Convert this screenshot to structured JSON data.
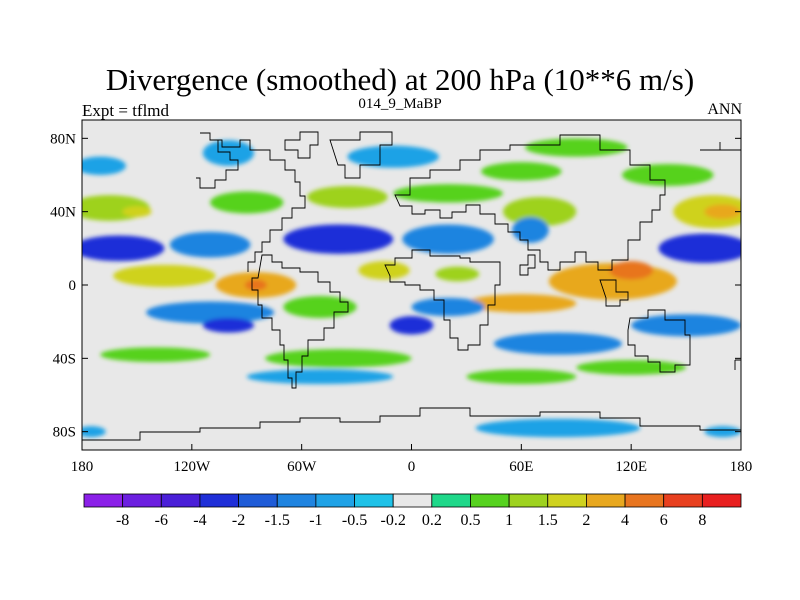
{
  "chart_data": {
    "type": "heatmap",
    "title": "Divergence (smoothed) at 200 hPa (10**6 m/s)",
    "left_label": "Expt = tflmd",
    "center_label": "014_9_MaBP",
    "right_label": "ANN",
    "xlim": [
      -180,
      180
    ],
    "ylim": [
      -90,
      90
    ],
    "x_ticks": [
      {
        "value": -180,
        "label": "180"
      },
      {
        "value": -120,
        "label": "120W"
      },
      {
        "value": -60,
        "label": "60W"
      },
      {
        "value": 0,
        "label": "0"
      },
      {
        "value": 60,
        "label": "60E"
      },
      {
        "value": 120,
        "label": "120E"
      },
      {
        "value": 180,
        "label": "180"
      }
    ],
    "y_ticks": [
      {
        "value": 80,
        "label": "80N"
      },
      {
        "value": 40,
        "label": "40N"
      },
      {
        "value": 0,
        "label": "0"
      },
      {
        "value": -40,
        "label": "40S"
      },
      {
        "value": -80,
        "label": "80S"
      }
    ],
    "colorbar": {
      "colors": [
        "#8b20e8",
        "#6c1fe0",
        "#4a1fd8",
        "#1f2fd8",
        "#1f5cd8",
        "#1f84e0",
        "#1fa2e6",
        "#1fc2e8",
        "#e8e8e8",
        "#1fd88a",
        "#56d21f",
        "#9ed21f",
        "#cfd21f",
        "#e8a81f",
        "#e8751f",
        "#e8401f",
        "#e81f1f"
      ],
      "labels": [
        "-8",
        "-6",
        "-4",
        "-2",
        "-1.5",
        "-1",
        "-0.5",
        "-0.2",
        "0.2",
        "0.5",
        "1",
        "1.5",
        "2",
        "4",
        "6",
        "8"
      ]
    },
    "fields": [
      {
        "lon": -170,
        "lat": 65,
        "value": -0.8,
        "rx": 14,
        "ry": 5
      },
      {
        "lon": -100,
        "lat": 72,
        "value": -0.8,
        "rx": 14,
        "ry": 7
      },
      {
        "lon": -10,
        "lat": 70,
        "value": -1,
        "rx": 25,
        "ry": 6
      },
      {
        "lon": 90,
        "lat": 75,
        "value": 0.7,
        "rx": 28,
        "ry": 5
      },
      {
        "lon": 60,
        "lat": 62,
        "value": 0.6,
        "rx": 22,
        "ry": 5
      },
      {
        "lon": 140,
        "lat": 60,
        "value": 0.6,
        "rx": 25,
        "ry": 6
      },
      {
        "lon": 20,
        "lat": 50,
        "value": 0.6,
        "rx": 30,
        "ry": 5
      },
      {
        "lon": -165,
        "lat": 42,
        "value": 1.2,
        "rx": 22,
        "ry": 7
      },
      {
        "lon": -150,
        "lat": 40,
        "value": 1.7,
        "rx": 8,
        "ry": 3
      },
      {
        "lon": -90,
        "lat": 45,
        "value": 0.8,
        "rx": 20,
        "ry": 6
      },
      {
        "lon": -35,
        "lat": 48,
        "value": 1.1,
        "rx": 22,
        "ry": 6
      },
      {
        "lon": 70,
        "lat": 40,
        "value": 1.2,
        "rx": 20,
        "ry": 8
      },
      {
        "lon": 165,
        "lat": 40,
        "value": 1.7,
        "rx": 22,
        "ry": 9
      },
      {
        "lon": 170,
        "lat": 40,
        "value": 2.5,
        "rx": 10,
        "ry": 4
      },
      {
        "lon": -160,
        "lat": 20,
        "value": -2.5,
        "rx": 25,
        "ry": 7
      },
      {
        "lon": -110,
        "lat": 22,
        "value": -1.2,
        "rx": 22,
        "ry": 7
      },
      {
        "lon": -40,
        "lat": 25,
        "value": -2.5,
        "rx": 30,
        "ry": 8
      },
      {
        "lon": 20,
        "lat": 25,
        "value": -1.5,
        "rx": 25,
        "ry": 8
      },
      {
        "lon": 65,
        "lat": 30,
        "value": -1.5,
        "rx": 10,
        "ry": 7
      },
      {
        "lon": 160,
        "lat": 20,
        "value": -2.5,
        "rx": 25,
        "ry": 8
      },
      {
        "lon": -135,
        "lat": 5,
        "value": 1.8,
        "rx": 28,
        "ry": 6
      },
      {
        "lon": -85,
        "lat": 0,
        "value": 2.5,
        "rx": 22,
        "ry": 7
      },
      {
        "lon": -85,
        "lat": 0,
        "value": 5,
        "rx": 6,
        "ry": 3
      },
      {
        "lon": -15,
        "lat": 8,
        "value": 1.7,
        "rx": 14,
        "ry": 5
      },
      {
        "lon": 25,
        "lat": 6,
        "value": 1.2,
        "rx": 12,
        "ry": 4
      },
      {
        "lon": 110,
        "lat": 2,
        "value": 2.5,
        "rx": 35,
        "ry": 10
      },
      {
        "lon": 120,
        "lat": 8,
        "value": 4,
        "rx": 12,
        "ry": 5
      },
      {
        "lon": 60,
        "lat": -10,
        "value": 2,
        "rx": 30,
        "ry": 5
      },
      {
        "lon": -50,
        "lat": -12,
        "value": 0.8,
        "rx": 20,
        "ry": 6
      },
      {
        "lon": 20,
        "lat": -12,
        "value": -1.5,
        "rx": 20,
        "ry": 5
      },
      {
        "lon": -110,
        "lat": -15,
        "value": -1.2,
        "rx": 35,
        "ry": 6
      },
      {
        "lon": -100,
        "lat": -22,
        "value": -2.5,
        "rx": 14,
        "ry": 4
      },
      {
        "lon": 0,
        "lat": -22,
        "value": -2.5,
        "rx": 12,
        "ry": 5
      },
      {
        "lon": 150,
        "lat": -22,
        "value": -1.5,
        "rx": 30,
        "ry": 6
      },
      {
        "lon": -140,
        "lat": -38,
        "value": 0.6,
        "rx": 30,
        "ry": 4
      },
      {
        "lon": -40,
        "lat": -40,
        "value": 0.6,
        "rx": 40,
        "ry": 5
      },
      {
        "lon": 80,
        "lat": -32,
        "value": -1.5,
        "rx": 35,
        "ry": 6
      },
      {
        "lon": 120,
        "lat": -45,
        "value": 0.6,
        "rx": 30,
        "ry": 4
      },
      {
        "lon": -50,
        "lat": -50,
        "value": -0.8,
        "rx": 40,
        "ry": 4
      },
      {
        "lon": 60,
        "lat": -50,
        "value": 0.6,
        "rx": 30,
        "ry": 4
      },
      {
        "lon": 80,
        "lat": -78,
        "value": -0.8,
        "rx": 45,
        "ry": 5
      },
      {
        "lon": -175,
        "lat": -80,
        "value": -0.8,
        "rx": 8,
        "ry": 3
      },
      {
        "lon": 170,
        "lat": -80,
        "value": -0.8,
        "rx": 10,
        "ry": 3
      }
    ]
  }
}
